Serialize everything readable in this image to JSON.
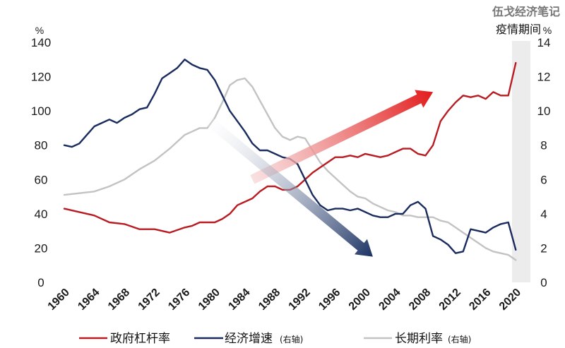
{
  "watermark": "伍戈经济笔记",
  "chart_data": {
    "type": "line",
    "left_axis": {
      "unit": "%",
      "ylim": [
        0,
        140
      ],
      "ticks": [
        "0",
        "20",
        "40",
        "60",
        "80",
        "100",
        "120",
        "140"
      ]
    },
    "right_axis": {
      "unit": "%",
      "ylim": [
        0,
        14
      ],
      "ticks": [
        "0",
        "2",
        "4",
        "6",
        "8",
        "10",
        "12",
        "14"
      ]
    },
    "x_ticks": [
      "1960",
      "1964",
      "1968",
      "1972",
      "1976",
      "1980",
      "1984",
      "1988",
      "1992",
      "1996",
      "2000",
      "2004",
      "2008",
      "2012",
      "2016",
      "2020"
    ],
    "xlim": [
      1960,
      2021
    ],
    "grid": false,
    "shaded_period": {
      "label": "疫情期间",
      "start": 2019.5,
      "end": 2021
    },
    "series": [
      {
        "name": "政府杠杆率",
        "axis_note": "",
        "axis": "left",
        "color": "#b81c22",
        "x": [
          1960,
          1962,
          1964,
          1966,
          1968,
          1970,
          1972,
          1974,
          1976,
          1977,
          1978,
          1980,
          1981,
          1982,
          1983,
          1984,
          1985,
          1986,
          1987,
          1988,
          1989,
          1990,
          1991,
          1992,
          1993,
          1994,
          1995,
          1996,
          1997,
          1998,
          1999,
          2000,
          2001,
          2002,
          2003,
          2004,
          2005,
          2006,
          2007,
          2008,
          2009,
          2010,
          2011,
          2012,
          2013,
          2014,
          2015,
          2016,
          2017,
          2018,
          2019,
          2020
        ],
        "y": [
          43,
          41,
          39,
          35,
          34,
          31,
          31,
          29,
          32,
          33,
          35,
          35,
          37,
          40,
          45,
          47,
          49,
          53,
          56,
          56,
          54,
          54,
          56,
          60,
          64,
          67,
          70,
          73,
          73,
          74,
          73,
          75,
          74,
          73,
          74,
          76,
          78,
          78,
          75,
          74,
          80,
          94,
          100,
          105,
          109,
          108,
          109,
          107,
          111,
          109,
          109,
          128
        ]
      },
      {
        "name": "经济增速",
        "axis_note": "(右轴)",
        "axis": "right",
        "color": "#1a2b5e",
        "x": [
          1960,
          1961,
          1962,
          1963,
          1964,
          1965,
          1966,
          1967,
          1968,
          1969,
          1970,
          1971,
          1972,
          1973,
          1974,
          1975,
          1976,
          1977,
          1978,
          1979,
          1980,
          1981,
          1982,
          1983,
          1984,
          1985,
          1986,
          1987,
          1988,
          1989,
          1990,
          1991,
          1992,
          1993,
          1994,
          1995,
          1996,
          1997,
          1998,
          1999,
          2000,
          2001,
          2002,
          2003,
          2004,
          2005,
          2006,
          2007,
          2008,
          2009,
          2010,
          2011,
          2012,
          2013,
          2014,
          2015,
          2016,
          2017,
          2018,
          2019,
          2020
        ],
        "y": [
          8.0,
          7.9,
          8.1,
          8.6,
          9.1,
          9.3,
          9.5,
          9.3,
          9.6,
          9.8,
          10.1,
          10.2,
          11.0,
          11.9,
          12.2,
          12.5,
          13.0,
          12.7,
          12.5,
          12.4,
          11.8,
          10.9,
          10.0,
          9.4,
          8.8,
          8.1,
          7.7,
          7.7,
          7.5,
          7.3,
          7.2,
          6.9,
          6.0,
          5.1,
          4.5,
          4.2,
          4.3,
          4.3,
          4.2,
          4.3,
          4.1,
          3.9,
          3.8,
          3.8,
          4.0,
          4.0,
          4.5,
          4.7,
          4.3,
          2.7,
          2.5,
          2.2,
          1.7,
          1.8,
          3.1,
          3.0,
          2.9,
          3.2,
          3.4,
          3.5,
          1.9
        ]
      },
      {
        "name": "长期利率",
        "axis_note": "(右轴)",
        "axis": "right",
        "color": "#c3c3c3",
        "x": [
          1960,
          1962,
          1964,
          1966,
          1968,
          1970,
          1972,
          1974,
          1976,
          1977,
          1978,
          1979,
          1980,
          1981,
          1982,
          1983,
          1984,
          1985,
          1986,
          1987,
          1988,
          1989,
          1990,
          1991,
          1992,
          1993,
          1994,
          1995,
          1996,
          1997,
          1998,
          1999,
          2000,
          2001,
          2002,
          2003,
          2004,
          2005,
          2006,
          2007,
          2008,
          2009,
          2010,
          2011,
          2012,
          2013,
          2014,
          2015,
          2016,
          2017,
          2018,
          2019,
          2020
        ],
        "y": [
          5.1,
          5.2,
          5.3,
          5.6,
          6.0,
          6.6,
          7.1,
          7.8,
          8.6,
          8.8,
          9.0,
          9.0,
          9.6,
          10.5,
          11.5,
          11.8,
          11.9,
          11.4,
          10.6,
          9.8,
          9.0,
          8.5,
          8.3,
          8.5,
          8.4,
          7.7,
          7.0,
          6.5,
          6.1,
          5.7,
          5.3,
          5.0,
          4.9,
          4.6,
          4.4,
          4.2,
          4.1,
          3.9,
          3.9,
          3.8,
          3.8,
          3.8,
          3.6,
          3.5,
          3.2,
          2.9,
          2.6,
          2.3,
          2.0,
          1.8,
          1.7,
          1.6,
          1.3
        ]
      }
    ],
    "annotations": [
      {
        "kind": "arrow",
        "color_from": "#f6d4d4",
        "color_to": "#e21b1b",
        "from": [
          1985,
          60
        ],
        "to": [
          2009,
          111
        ]
      },
      {
        "kind": "arrow",
        "color_from": "#ffffff",
        "color_to": "#1b3263",
        "from": [
          1979,
          95
        ],
        "to": [
          2001,
          15
        ]
      }
    ]
  }
}
